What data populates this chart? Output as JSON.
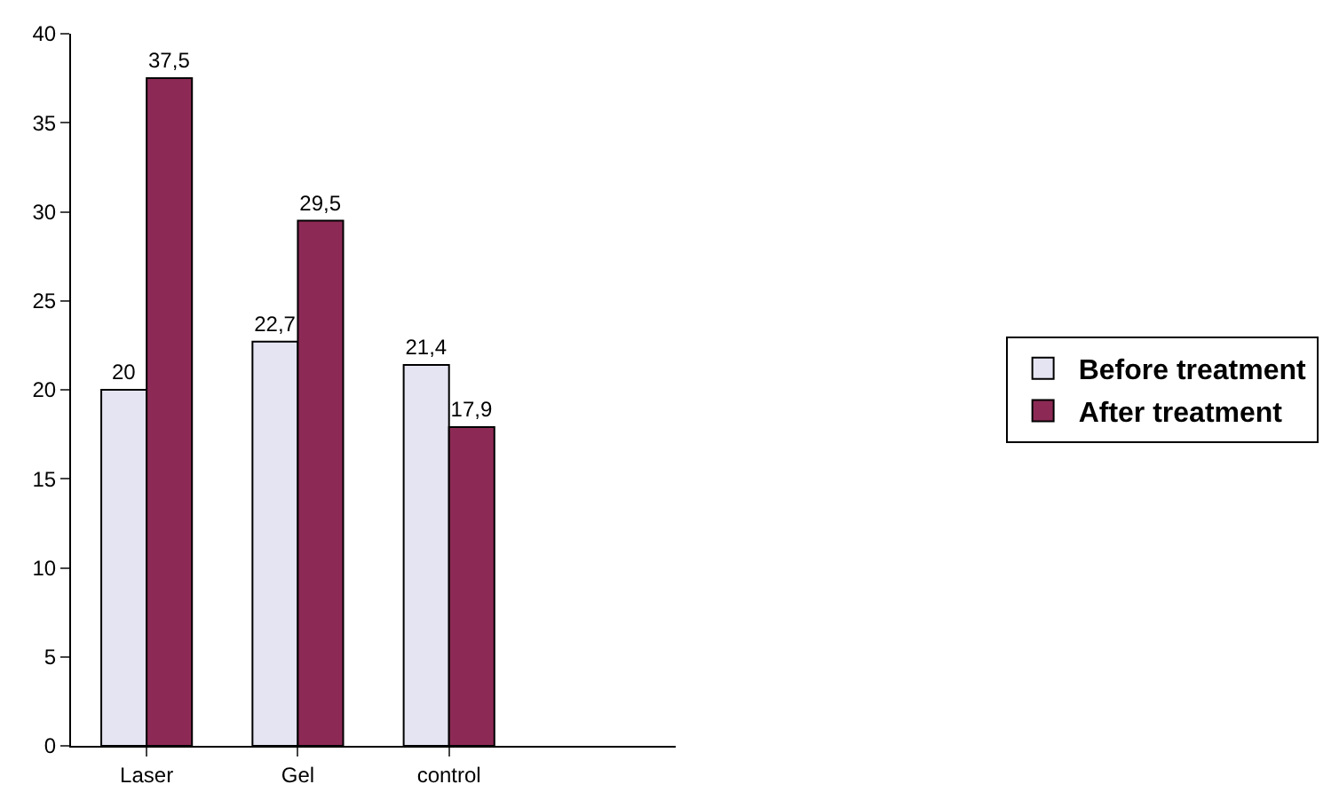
{
  "chart_data": {
    "type": "bar",
    "categories": [
      "Laser",
      "Gel",
      "control"
    ],
    "series": [
      {
        "name": "Before treatment",
        "color": "#e4e4f2",
        "values": [
          20,
          22.7,
          21.4
        ],
        "value_labels": [
          "20",
          "22,7",
          "21,4"
        ]
      },
      {
        "name": "After treatment",
        "color": "#8c2a55",
        "values": [
          37.5,
          29.5,
          17.9
        ],
        "value_labels": [
          "37,5",
          "29,5",
          "17,9"
        ]
      }
    ],
    "ylim": [
      0,
      40
    ],
    "yticks": [
      0,
      5,
      10,
      15,
      20,
      25,
      30,
      35,
      40
    ],
    "legend": "right"
  }
}
